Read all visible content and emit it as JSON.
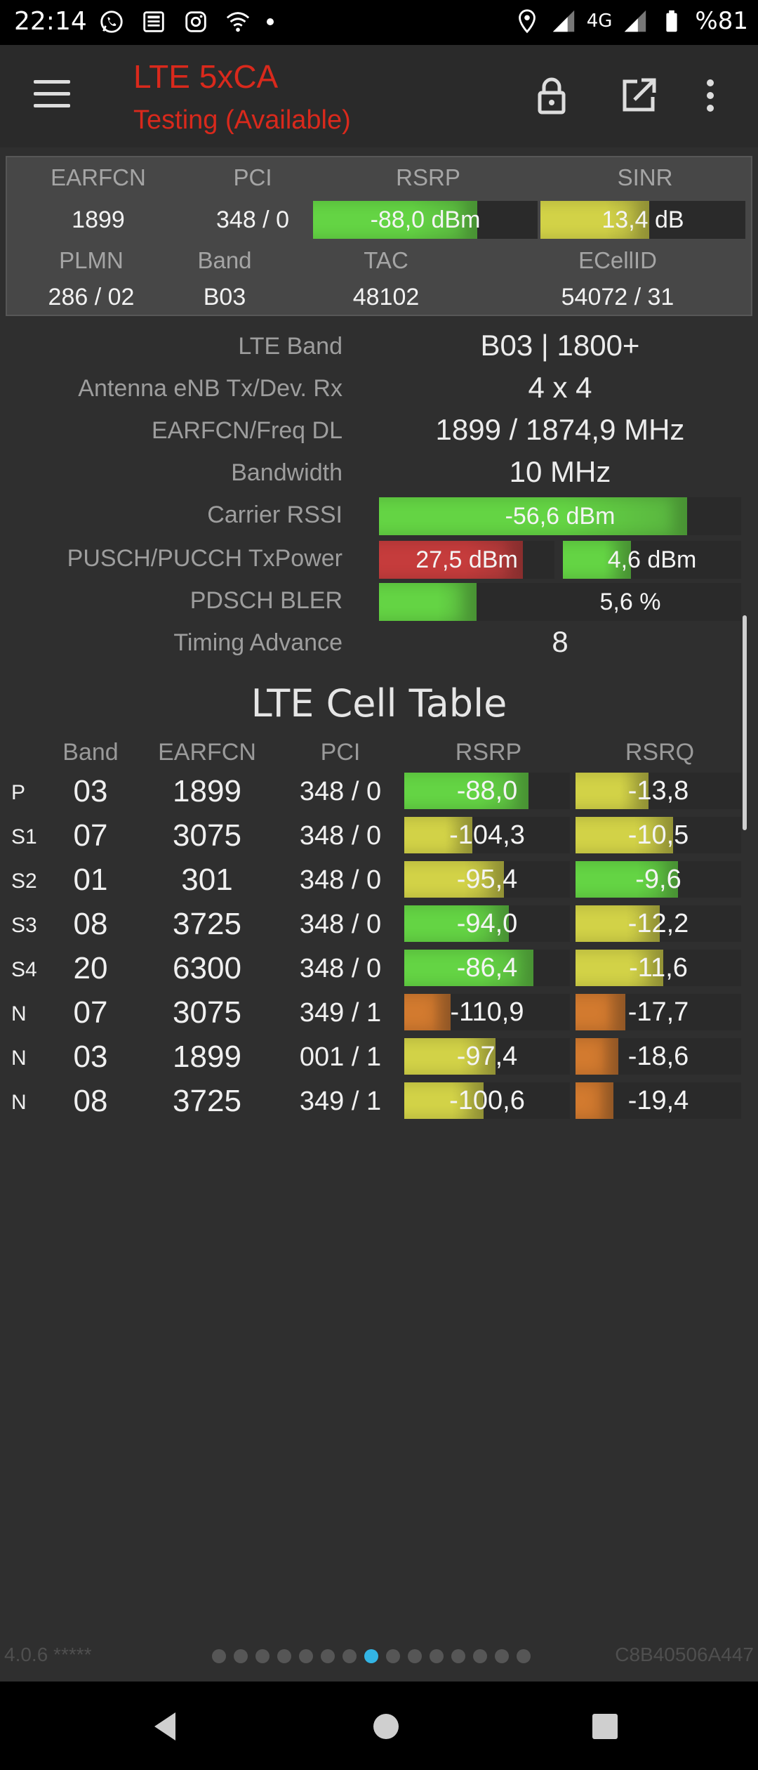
{
  "status_bar": {
    "time": "22:14",
    "left_icons": [
      "whatsapp-icon",
      "news-icon",
      "instagram-icon",
      "wifi-icon"
    ],
    "network": "4G",
    "battery": "%81"
  },
  "app_bar": {
    "title": "LTE 5xCA",
    "subtitle": "Testing (Available)"
  },
  "summary": {
    "headers": {
      "earfcn": "EARFCN",
      "pci": "PCI",
      "rsrp": "RSRP",
      "sinr": "SINR",
      "plmn": "PLMN",
      "band": "Band",
      "tac": "TAC",
      "ecellid": "ECellID"
    },
    "earfcn": "1899",
    "pci": "348 / 0",
    "rsrp": {
      "text": "-88,0 dBm",
      "level": 0.73
    },
    "sinr": {
      "text": "13,4 dB",
      "level": 0.53
    },
    "plmn": "286 / 02",
    "band": "B03",
    "tac": "48102",
    "ecellid": "54072 / 31"
  },
  "details": {
    "lte_band": {
      "label": "LTE Band",
      "value": "B03 | 1800+"
    },
    "antenna": {
      "label": "Antenna eNB Tx/Dev. Rx",
      "value": "4 x 4"
    },
    "earfcn_freq": {
      "label": "EARFCN/Freq DL",
      "value": "1899 / 1874,9 MHz"
    },
    "bandwidth": {
      "label": "Bandwidth",
      "value": "10 MHz"
    },
    "carrier_rssi": {
      "label": "Carrier RSSI",
      "value": "-56,6 dBm",
      "level": 0.85
    },
    "tx_power": {
      "label": "PUSCH/PUCCH TxPower",
      "pusch": "27,5 dBm",
      "pusch_level": 0.82,
      "pucch": "4,6 dBm",
      "pucch_level": 0.38
    },
    "bler": {
      "label": "PDSCH BLER",
      "value": "5,6 %",
      "level": 0.27
    },
    "timing_advance": {
      "label": "Timing Advance",
      "value": "8"
    }
  },
  "cell_table": {
    "title": "LTE Cell Table",
    "headers": {
      "band": "Band",
      "earfcn": "EARFCN",
      "pci": "PCI",
      "rsrp": "RSRP",
      "rsrq": "RSRQ"
    },
    "rows": [
      {
        "type": "P",
        "band": "03",
        "earfcn": "1899",
        "pci": "348 / 0",
        "rsrp": "-88,0",
        "rsrp_level": 0.75,
        "rsrp_color": "green",
        "rsrq": "-13,8",
        "rsrq_level": 0.44,
        "rsrq_color": "yellow"
      },
      {
        "type": "S1",
        "band": "07",
        "earfcn": "3075",
        "pci": "348 / 0",
        "rsrp": "-104,3",
        "rsrp_level": 0.41,
        "rsrp_color": "yellow",
        "rsrq": "-10,5",
        "rsrq_level": 0.59,
        "rsrq_color": "yellow"
      },
      {
        "type": "S2",
        "band": "01",
        "earfcn": "301",
        "pci": "348 / 0",
        "rsrp": "-95,4",
        "rsrp_level": 0.6,
        "rsrp_color": "yellow",
        "rsrq": "-9,6",
        "rsrq_level": 0.62,
        "rsrq_color": "green"
      },
      {
        "type": "S3",
        "band": "08",
        "earfcn": "3725",
        "pci": "348 / 0",
        "rsrp": "-94,0",
        "rsrp_level": 0.63,
        "rsrp_color": "green",
        "rsrq": "-12,2",
        "rsrq_level": 0.51,
        "rsrq_color": "yellow"
      },
      {
        "type": "S4",
        "band": "20",
        "earfcn": "6300",
        "pci": "348 / 0",
        "rsrp": "-86,4",
        "rsrp_level": 0.78,
        "rsrp_color": "green",
        "rsrq": "-11,6",
        "rsrq_level": 0.53,
        "rsrq_color": "yellow"
      },
      {
        "type": "N",
        "band": "07",
        "earfcn": "3075",
        "pci": "349 / 1",
        "rsrp": "-110,9",
        "rsrp_level": 0.28,
        "rsrp_color": "orange",
        "rsrq": "-17,7",
        "rsrq_level": 0.3,
        "rsrq_color": "orange"
      },
      {
        "type": "N",
        "band": "03",
        "earfcn": "1899",
        "pci": "001 / 1",
        "rsrp": "-97,4",
        "rsrp_level": 0.55,
        "rsrp_color": "yellow",
        "rsrq": "-18,6",
        "rsrq_level": 0.26,
        "rsrq_color": "orange"
      },
      {
        "type": "N",
        "band": "08",
        "earfcn": "3725",
        "pci": "349 / 1",
        "rsrp": "-100,6",
        "rsrp_level": 0.48,
        "rsrp_color": "yellow",
        "rsrq": "-19,4",
        "rsrq_level": 0.23,
        "rsrq_color": "orange"
      }
    ]
  },
  "footer": {
    "version": "4.0.6 *****",
    "device_id": "C8B40506A447",
    "page_count": 15,
    "active_page": 7
  },
  "colors": {
    "green": "#64d444",
    "yellow": "#d2d247",
    "orange": "#d27a2f",
    "red": "#c53c3c",
    "title": "#d9291c",
    "active_dot": "#33b5e5"
  }
}
